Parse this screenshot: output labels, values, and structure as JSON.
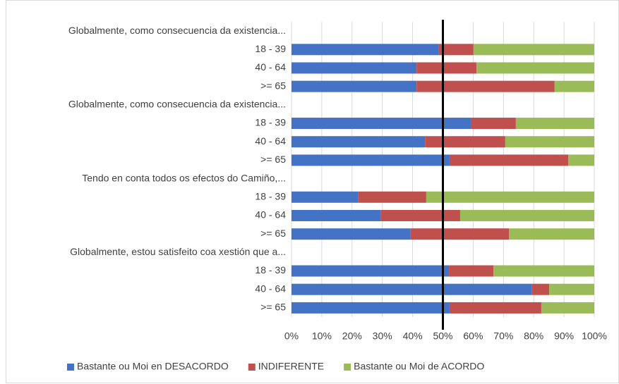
{
  "chart_data": {
    "type": "stacked-bar-horizontal",
    "categories": [
      "Globalmente, como consecuencia da existencia...",
      "18 - 39",
      "40 - 64",
      ">= 65",
      "Globalmente, como consecuencia da existencia...",
      "18 - 39",
      "40 - 64",
      ">= 65",
      "Tendo en conta todos os efectos do Camiño,...",
      "18 - 39",
      "40 - 64",
      ">= 65",
      "Globalmente, estou satisfeito coa xestión que a...",
      "18 - 39",
      "40 - 64",
      ">= 65"
    ],
    "series": [
      {
        "name": "Bastante ou Moi en DESACORDO",
        "color": "#4472c4",
        "values": [
          null,
          48.5,
          41.3,
          41.3,
          null,
          59.2,
          44.1,
          52.2,
          null,
          22.1,
          29.4,
          39.2,
          null,
          52.0,
          79.3,
          52.2
        ]
      },
      {
        "name": "INDIFERENTE",
        "color": "#c0504d",
        "values": [
          null,
          11.6,
          19.8,
          45.6,
          null,
          14.9,
          26.5,
          39.2,
          null,
          22.4,
          26.3,
          32.6,
          null,
          14.7,
          5.8,
          30.3
        ]
      },
      {
        "name": "Bastante ou Moi de ACORDO",
        "color": "#9bbb59",
        "values": [
          null,
          39.9,
          38.9,
          13.1,
          null,
          25.9,
          29.4,
          8.6,
          null,
          55.5,
          44.3,
          28.2,
          null,
          33.3,
          14.9,
          17.5
        ]
      }
    ],
    "xlim": [
      0,
      100
    ],
    "xticks": [
      {
        "value": 0,
        "label": "0%"
      },
      {
        "value": 10,
        "label": "10%"
      },
      {
        "value": 20,
        "label": "20%"
      },
      {
        "value": 30,
        "label": "30%"
      },
      {
        "value": 40,
        "label": "40%"
      },
      {
        "value": 50,
        "label": "50%"
      },
      {
        "value": 60,
        "label": "60%"
      },
      {
        "value": 70,
        "label": "70%"
      },
      {
        "value": 80,
        "label": "80%"
      },
      {
        "value": 90,
        "label": "90%"
      },
      {
        "value": 100,
        "label": "100%"
      }
    ],
    "reference_line": 50,
    "grid": true,
    "legend": "bottom"
  }
}
